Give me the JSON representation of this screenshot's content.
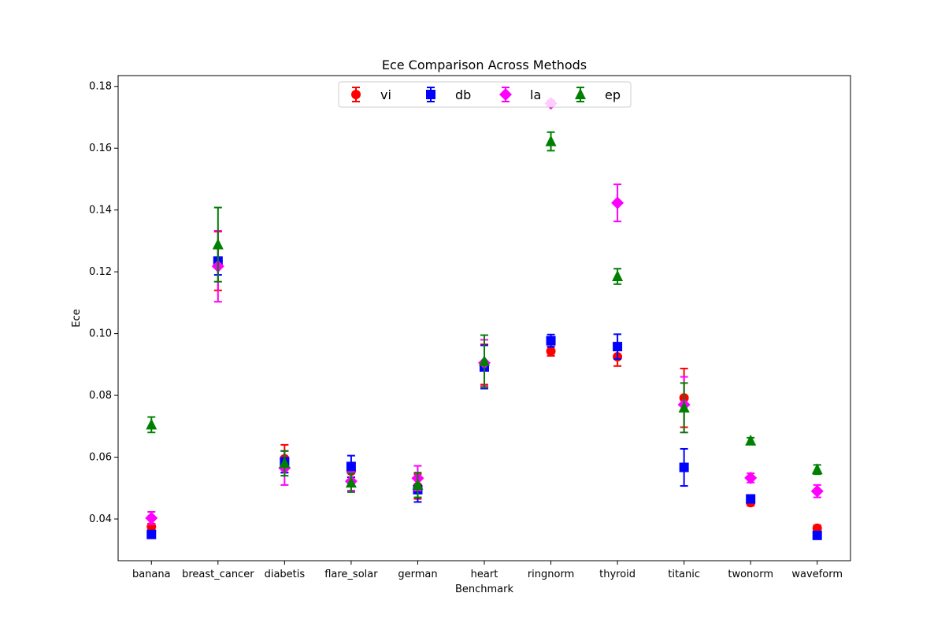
{
  "chart_data": {
    "type": "scatter",
    "title": "Ece Comparison Across Methods",
    "xlabel": "Benchmark",
    "ylabel": "Ece",
    "ylim": [
      0.0265,
      0.1835
    ],
    "yticks": [
      "0.04",
      "0.06",
      "0.08",
      "0.10",
      "0.12",
      "0.14",
      "0.16",
      "0.18"
    ],
    "yticks_values": [
      0.04,
      0.06,
      0.08,
      0.1,
      0.12,
      0.14,
      0.16,
      0.18
    ],
    "grid": false,
    "legend_position": "top-center",
    "categories": [
      "banana",
      "breast_cancer",
      "diabetis",
      "flare_solar",
      "german",
      "heart",
      "ringnorm",
      "thyroid",
      "titanic",
      "twonorm",
      "waveform"
    ],
    "series": [
      {
        "name": "vi",
        "color": "#ff0000",
        "marker": "circle",
        "values": [
          0.0375,
          0.1235,
          0.0595,
          0.0555,
          0.0505,
          0.09,
          0.0943,
          0.0925,
          0.0792,
          0.0453,
          0.037
        ],
        "errors": [
          0.001,
          0.0095,
          0.0045,
          0.002,
          0.004,
          0.0065,
          0.0015,
          0.003,
          0.0095,
          0.001,
          0.001
        ]
      },
      {
        "name": "db",
        "color": "#0000ff",
        "marker": "square",
        "values": [
          0.035,
          0.1235,
          0.0585,
          0.057,
          0.0495,
          0.0892,
          0.0977,
          0.0958,
          0.0567,
          0.0465,
          0.0347
        ],
        "errors": [
          0.001,
          0.0045,
          0.0035,
          0.0035,
          0.004,
          0.007,
          0.002,
          0.004,
          0.006,
          0.001,
          0.001
        ]
      },
      {
        "name": "la",
        "color": "#ff00ff",
        "marker": "diamond",
        "values": [
          0.0403,
          0.1218,
          0.0565,
          0.0522,
          0.0532,
          0.0905,
          0.1745,
          0.1423,
          0.077,
          0.0533,
          0.049
        ],
        "errors": [
          0.002,
          0.0115,
          0.0055,
          0.003,
          0.004,
          0.0075,
          0.001,
          0.006,
          0.009,
          0.0015,
          0.002
        ]
      },
      {
        "name": "ep",
        "color": "#008000",
        "marker": "triangle",
        "values": [
          0.0705,
          0.1288,
          0.058,
          0.0517,
          0.051,
          0.091,
          0.1622,
          0.1185,
          0.076,
          0.0653,
          0.056
        ],
        "errors": [
          0.0025,
          0.012,
          0.004,
          0.003,
          0.004,
          0.0085,
          0.003,
          0.0025,
          0.008,
          0.001,
          0.0015
        ]
      }
    ]
  }
}
